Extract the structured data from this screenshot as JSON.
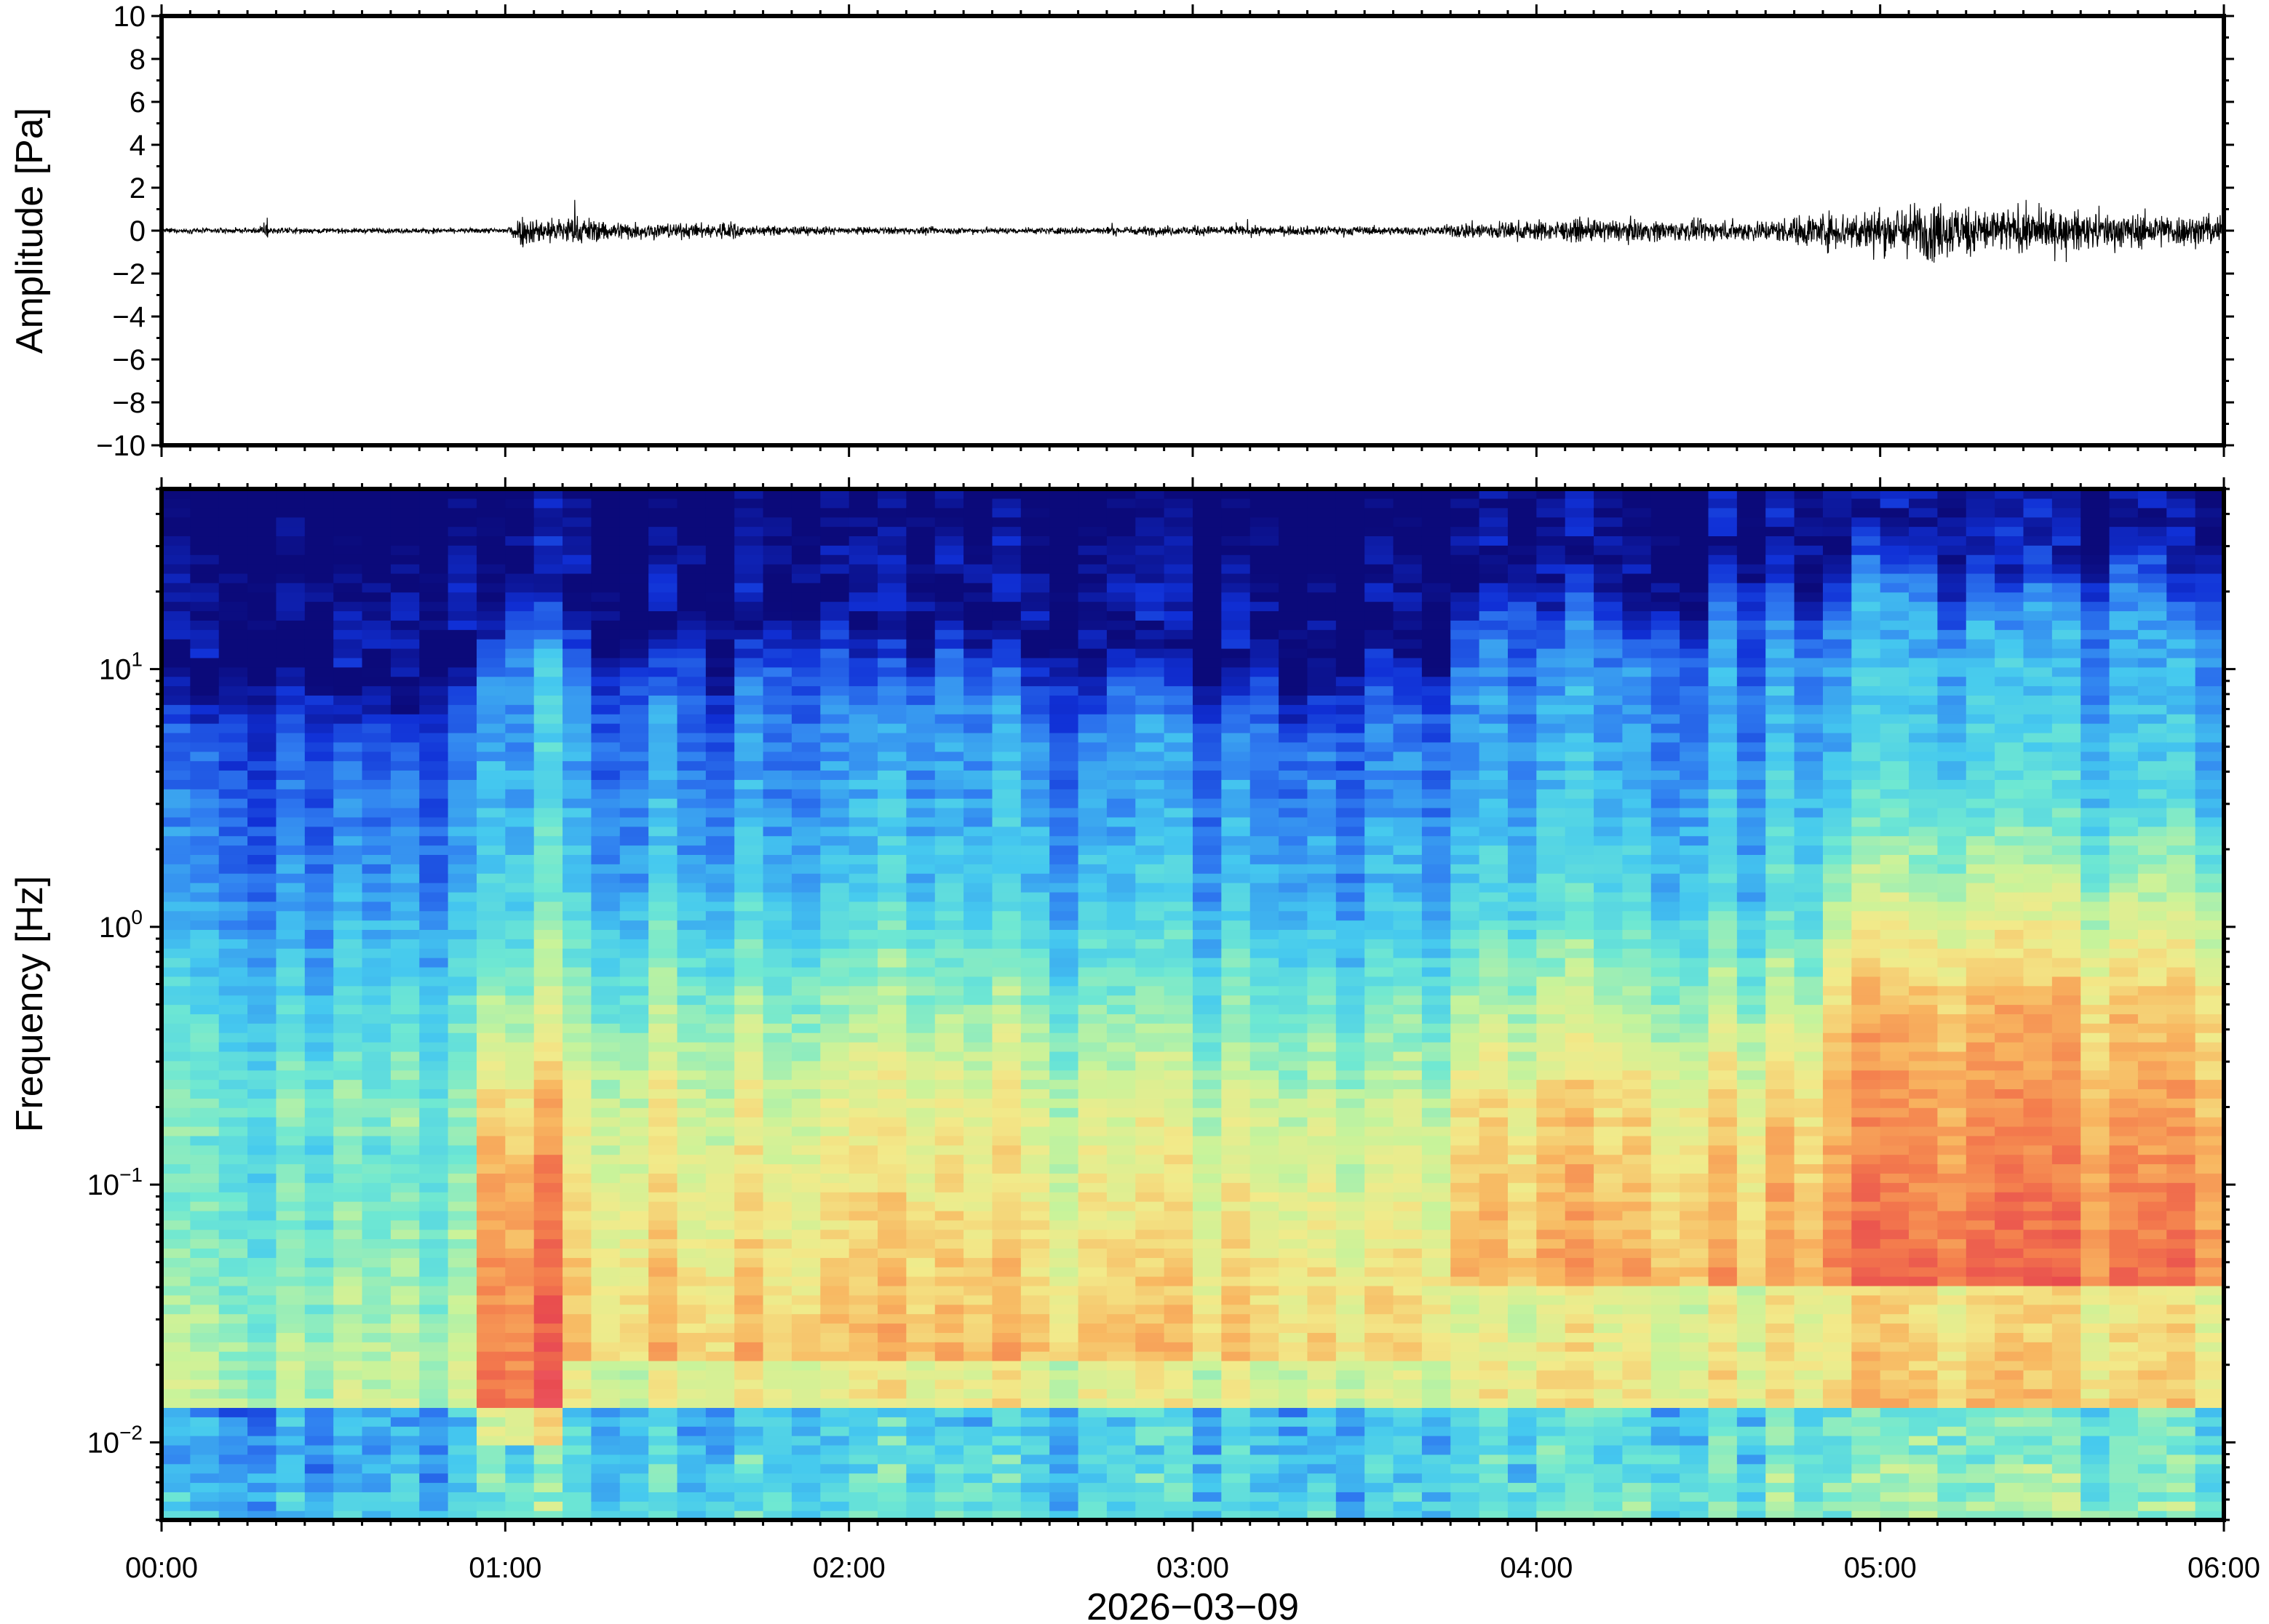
{
  "chart_data": [
    {
      "type": "line",
      "panel": "waveform",
      "ylabel": "Amplitude [Pa]",
      "ylim": [
        -10,
        10
      ],
      "yticks": [
        "10",
        "8",
        "6",
        "4",
        "2",
        "0",
        "−2",
        "−4",
        "−6",
        "−8",
        "−10"
      ],
      "ytick_values": [
        10,
        8,
        6,
        4,
        2,
        0,
        -2,
        -4,
        -6,
        -8,
        -10
      ],
      "xlim_hours": [
        0,
        6
      ],
      "series": [
        {
          "envelope_hours": [
            0.0,
            0.28,
            0.3,
            0.32,
            0.5,
            0.9,
            1.0,
            1.05,
            1.1,
            1.2,
            1.3,
            1.5,
            1.6,
            1.65,
            1.7,
            2.0,
            2.5,
            3.0,
            3.5,
            3.7,
            3.8,
            4.0,
            4.2,
            4.5,
            4.7,
            4.8,
            5.0,
            5.15,
            5.3,
            5.6,
            6.0
          ],
          "envelope_amplitude_pa": [
            0.2,
            0.2,
            0.9,
            0.25,
            0.2,
            0.2,
            0.25,
            1.3,
            1.0,
            1.2,
            0.8,
            0.6,
            0.6,
            0.9,
            0.4,
            0.3,
            0.25,
            0.4,
            0.35,
            0.3,
            0.7,
            0.8,
            0.9,
            0.8,
            0.9,
            1.4,
            1.8,
            2.4,
            1.9,
            1.5,
            1.2
          ]
        }
      ]
    },
    {
      "type": "heatmap",
      "panel": "spectrogram",
      "ylabel": "Frequency [Hz]",
      "yscale": "log",
      "ylim": [
        0.005,
        50
      ],
      "yticks": [
        {
          "value": 10,
          "base": "10",
          "exp": "1"
        },
        {
          "value": 1,
          "base": "10",
          "exp": "0"
        },
        {
          "value": 0.1,
          "base": "10",
          "exp": "−1"
        },
        {
          "value": 0.01,
          "base": "10",
          "exp": "−2"
        }
      ],
      "xlabel": "2026−03−09",
      "xlim_hours": [
        0,
        6
      ],
      "xticks": [
        "00:00",
        "01:00",
        "02:00",
        "03:00",
        "04:00",
        "05:00",
        "06:00"
      ],
      "xtick_hours": [
        0,
        1,
        2,
        3,
        4,
        5,
        6
      ],
      "colormap": [
        "#0b0a7a",
        "#1030d6",
        "#2f7bf0",
        "#45c9ef",
        "#6fe8d2",
        "#c8f39a",
        "#f2ea8a",
        "#f8b660",
        "#f47e4d",
        "#e84a4e",
        "#f06070"
      ],
      "segments_hours": [
        {
          "start": 0.0,
          "end": 0.95,
          "noise_top_hz": 12,
          "loud_band_hz": [
            0.15,
            0.25
          ],
          "level": 0.25
        },
        {
          "start": 0.95,
          "end": 1.2,
          "noise_top_hz": 25,
          "loud_band_hz": [
            0.01,
            0.15
          ],
          "level": 0.85
        },
        {
          "start": 1.2,
          "end": 2.5,
          "noise_top_hz": 18,
          "loud_band_hz": [
            0.02,
            0.25
          ],
          "level": 0.55
        },
        {
          "start": 2.5,
          "end": 3.75,
          "noise_top_hz": 15,
          "loud_band_hz": [
            0.02,
            0.2
          ],
          "level": 0.5
        },
        {
          "start": 3.75,
          "end": 4.8,
          "noise_top_hz": 30,
          "loud_band_hz": [
            0.04,
            0.2
          ],
          "level": 0.7
        },
        {
          "start": 4.8,
          "end": 6.0,
          "noise_top_hz": 35,
          "loud_band_hz": [
            0.04,
            0.5
          ],
          "level": 0.9
        }
      ]
    }
  ]
}
